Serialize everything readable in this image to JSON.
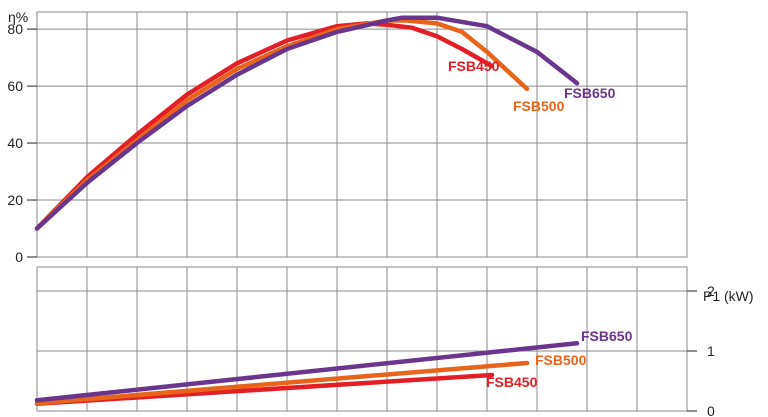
{
  "chart_data": [
    {
      "type": "line",
      "title": "",
      "ylabel": "η%",
      "xlabel": "",
      "ylim": [
        0,
        86
      ],
      "xlim": [
        0,
        13
      ],
      "yticks": [
        0,
        20,
        40,
        60,
        80
      ],
      "grid": true,
      "series": [
        {
          "name": "FSB450",
          "color": "#e31e24",
          "x": [
            0,
            1,
            2,
            3,
            4,
            5,
            6,
            6.6,
            7,
            7.5,
            8,
            8.5,
            9.1
          ],
          "y": [
            10,
            28,
            43,
            57,
            68,
            76,
            81,
            82,
            81.5,
            80.5,
            77.5,
            73,
            67
          ]
        },
        {
          "name": "FSB500",
          "color": "#e8641b",
          "x": [
            0,
            1,
            2,
            3,
            4,
            5,
            6,
            7,
            7.4,
            8,
            8.5,
            9,
            9.8
          ],
          "y": [
            10,
            27,
            41,
            55,
            66,
            74,
            80,
            83,
            83,
            82,
            79,
            72,
            59
          ]
        },
        {
          "name": "FSB650",
          "color": "#6a358c",
          "x": [
            0,
            1,
            2,
            3,
            4,
            5,
            6,
            7,
            7.3,
            8,
            9,
            10,
            10.8
          ],
          "y": [
            10,
            26,
            40,
            53,
            64,
            73,
            79,
            83,
            84,
            84,
            81,
            72,
            61
          ]
        }
      ]
    },
    {
      "type": "line",
      "title": "",
      "ylabel": "P1 (kW)",
      "xlabel": "",
      "ylim": [
        0,
        2.4
      ],
      "xlim": [
        0,
        13
      ],
      "yticks": [
        0,
        1,
        2
      ],
      "grid": true,
      "series": [
        {
          "name": "FSB450",
          "color": "#e31e24",
          "x": [
            0,
            9.1
          ],
          "y": [
            0.12,
            0.6
          ]
        },
        {
          "name": "FSB500",
          "color": "#e8641b",
          "x": [
            0,
            9.8
          ],
          "y": [
            0.13,
            0.8
          ]
        },
        {
          "name": "FSB650",
          "color": "#6a358c",
          "x": [
            0,
            10.8
          ],
          "y": [
            0.18,
            1.13
          ]
        }
      ]
    }
  ]
}
